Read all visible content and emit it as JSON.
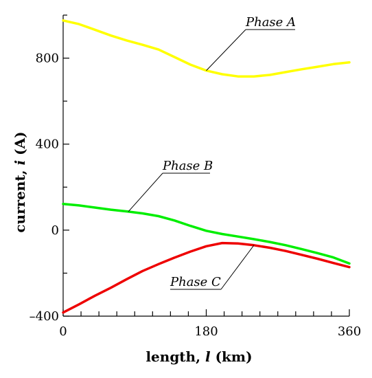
{
  "chart_data": {
    "type": "line",
    "xlabel": "length,",
    "xlabel_var": "l",
    "xlabel_unit": "(km)",
    "ylabel": "current,",
    "ylabel_var": "i",
    "ylabel_unit": "(A)",
    "xlim": [
      0,
      360
    ],
    "ylim": [
      -400,
      1000
    ],
    "x_ticks": [
      0,
      180,
      360
    ],
    "y_ticks": [
      -400,
      0,
      400,
      800
    ],
    "x_tick_labels": [
      "0",
      "180",
      "360"
    ],
    "y_tick_labels": [
      "–400",
      "0",
      "400",
      "800"
    ],
    "grid": false,
    "series": [
      {
        "name": "Phase A",
        "color": "#ffff00",
        "x": [
          0,
          20,
          40,
          60,
          80,
          100,
          120,
          140,
          160,
          180,
          200,
          220,
          240,
          260,
          280,
          300,
          320,
          340,
          360
        ],
        "y": [
          975,
          958,
          932,
          905,
          882,
          862,
          840,
          805,
          770,
          742,
          725,
          715,
          715,
          722,
          735,
          748,
          760,
          772,
          780
        ]
      },
      {
        "name": "Phase B",
        "color": "#00ee00",
        "x": [
          0,
          20,
          40,
          60,
          80,
          100,
          120,
          140,
          160,
          180,
          200,
          220,
          240,
          260,
          280,
          300,
          320,
          340,
          360
        ],
        "y": [
          122,
          115,
          105,
          95,
          87,
          78,
          65,
          45,
          20,
          -3,
          -18,
          -30,
          -42,
          -55,
          -70,
          -88,
          -107,
          -127,
          -155
        ]
      },
      {
        "name": "Phase C",
        "color": "#ee0000",
        "x": [
          0,
          20,
          40,
          60,
          80,
          100,
          120,
          140,
          160,
          180,
          200,
          220,
          240,
          260,
          280,
          300,
          320,
          340,
          360
        ],
        "y": [
          -383,
          -345,
          -305,
          -268,
          -228,
          -190,
          -158,
          -128,
          -100,
          -75,
          -60,
          -62,
          -70,
          -82,
          -97,
          -115,
          -133,
          -153,
          -172
        ]
      }
    ],
    "annotations": [
      {
        "series": "Phase A",
        "text": "Phase A"
      },
      {
        "series": "Phase B",
        "text": "Phase B"
      },
      {
        "series": "Phase C",
        "text": "Phase C"
      }
    ]
  }
}
